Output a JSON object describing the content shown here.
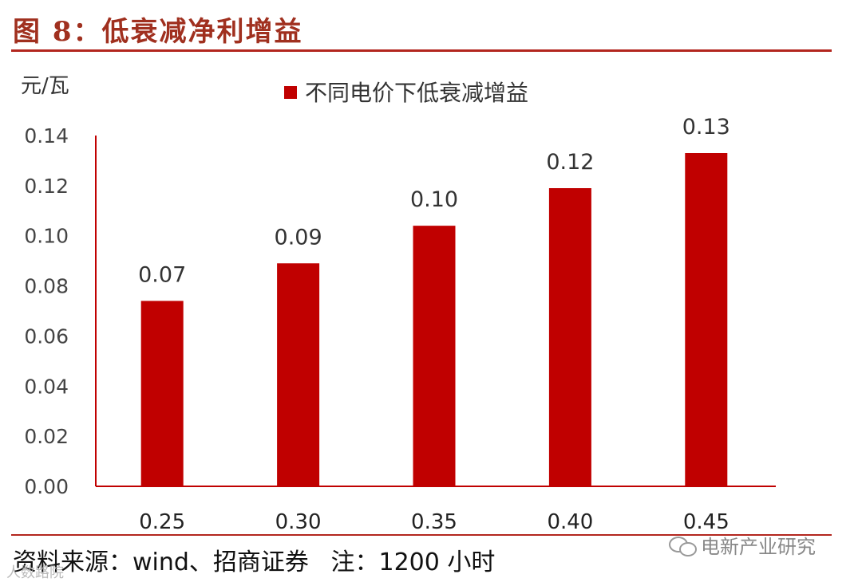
{
  "figure": {
    "title": "图 8：低衰减净利增益",
    "source": "资料来源：wind、招商证券",
    "note": "注：1200 小时",
    "watermark_right": "电新产业研究",
    "watermark_left": "人数路院"
  },
  "colors": {
    "bar": "#c00000",
    "axis": "#c00000",
    "title": "#a0301f",
    "rule": "#b3261e"
  },
  "chart_data": {
    "type": "bar",
    "ylabel": "元/瓦",
    "xlabel": "",
    "categories": [
      "0.25",
      "0.30",
      "0.35",
      "0.40",
      "0.45"
    ],
    "series": [
      {
        "name": "不同电价下低衰减增益",
        "values": [
          0.074,
          0.089,
          0.104,
          0.119,
          0.133
        ],
        "labels": [
          "0.07",
          "0.09",
          "0.10",
          "0.12",
          "0.13"
        ]
      }
    ],
    "ylim": [
      0,
      0.14
    ],
    "yticks": [
      "0.00",
      "0.02",
      "0.04",
      "0.06",
      "0.08",
      "0.10",
      "0.12",
      "0.14"
    ],
    "legend": "top-center",
    "grid": false
  }
}
